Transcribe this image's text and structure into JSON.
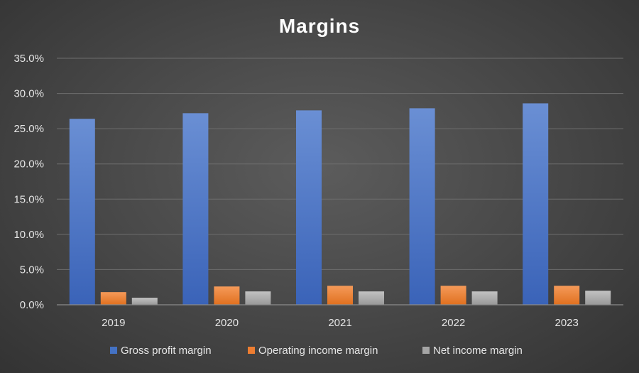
{
  "chart_data": {
    "type": "bar",
    "title": "Margins",
    "categories": [
      "2019",
      "2020",
      "2021",
      "2022",
      "2023"
    ],
    "series": [
      {
        "name": "Gross profit margin",
        "color": "#4472c4",
        "values": [
          26.4,
          27.2,
          27.6,
          27.9,
          28.6
        ]
      },
      {
        "name": "Operating income margin",
        "color": "#ed7d31",
        "values": [
          1.8,
          2.6,
          2.7,
          2.7,
          2.7
        ]
      },
      {
        "name": "Net income margin",
        "color": "#a5a5a5",
        "values": [
          1.0,
          1.9,
          1.9,
          1.9,
          2.0
        ]
      }
    ],
    "ylim": [
      0,
      35
    ],
    "yticks": [
      "0.0%",
      "5.0%",
      "10.0%",
      "15.0%",
      "20.0%",
      "25.0%",
      "30.0%",
      "35.0%"
    ],
    "xlabel": "",
    "ylabel": "",
    "grid": true,
    "legend_position": "bottom"
  }
}
